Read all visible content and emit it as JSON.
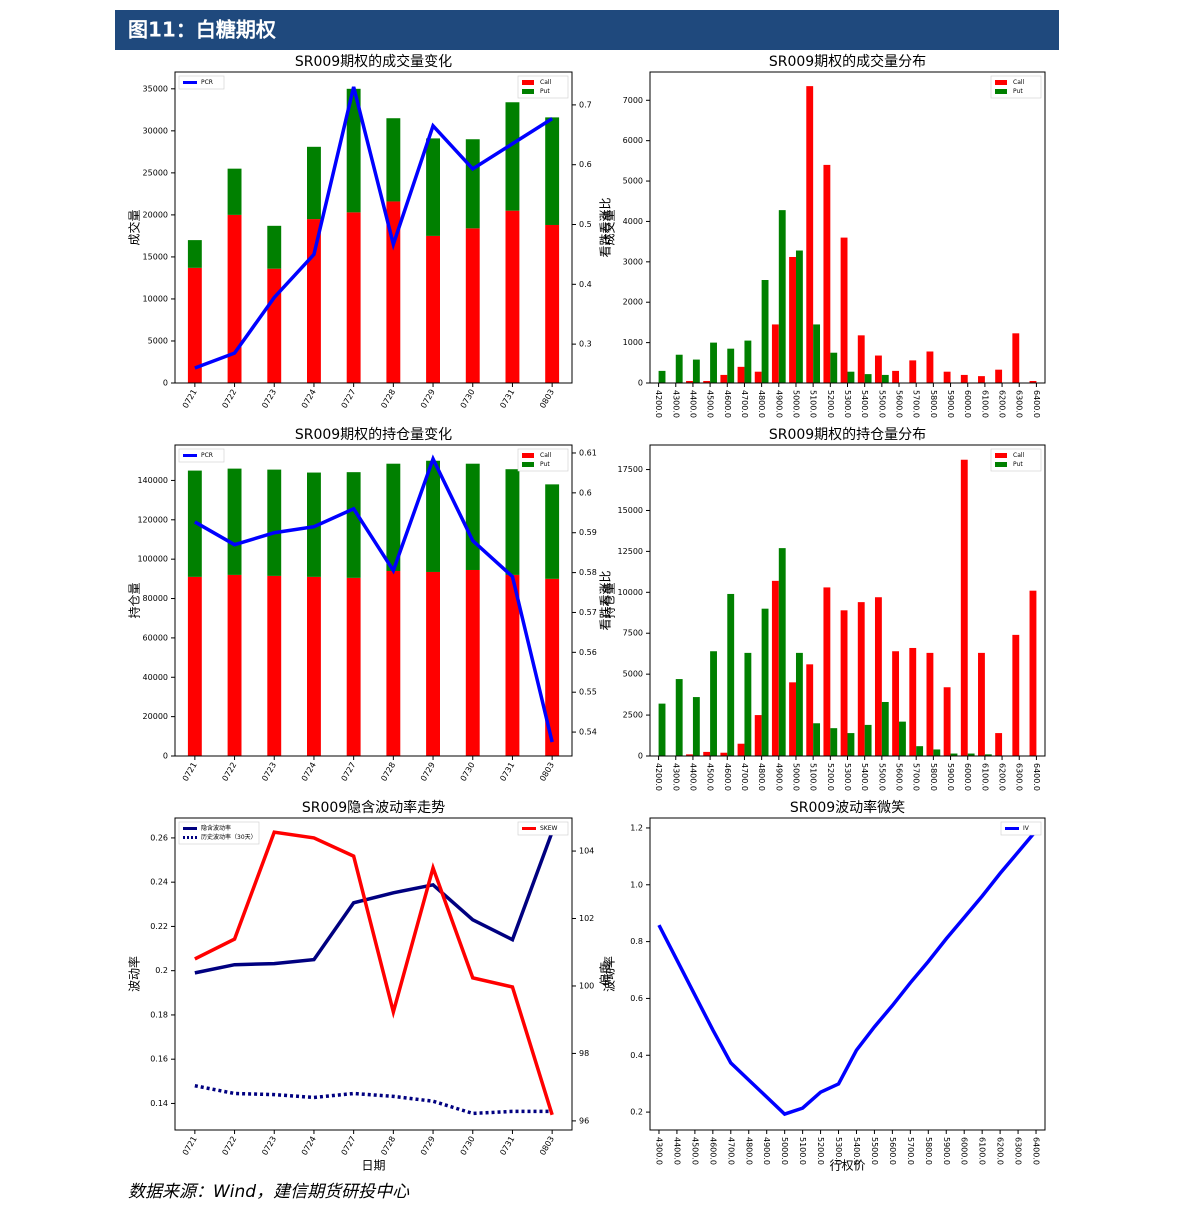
{
  "header": {
    "title": "图11：白糖期权"
  },
  "source": "数据来源：Wind，建信期货研投中心",
  "chart_data": [
    {
      "type": "bar",
      "stacked": true,
      "title": "SR009期权的成交量变化",
      "ylabel": "成交量",
      "y2label": "看跌看涨比",
      "categories": [
        "0721",
        "0722",
        "0723",
        "0724",
        "0727",
        "0728",
        "0729",
        "0730",
        "0731",
        "0803"
      ],
      "series": [
        {
          "name": "Call",
          "color": "#ff0000",
          "values": [
            13700,
            20000,
            13600,
            19500,
            20300,
            21600,
            17500,
            18400,
            20500,
            18800
          ]
        },
        {
          "name": "Put",
          "color": "#008000",
          "values": [
            3300,
            5500,
            5100,
            8600,
            14700,
            9900,
            11600,
            10600,
            12900,
            12800
          ]
        },
        {
          "name": "PCR",
          "type": "line",
          "axis": "y2",
          "color": "#0000ff",
          "values": [
            0.26,
            0.285,
            0.378,
            0.45,
            0.73,
            0.467,
            0.665,
            0.593,
            0.635,
            0.677
          ]
        }
      ],
      "ylim": [
        0,
        37000
      ],
      "yticks": [
        0,
        5000,
        10000,
        15000,
        20000,
        25000,
        30000,
        35000
      ],
      "y2lim": [
        0.235,
        0.755
      ],
      "y2ticks": [
        0.3,
        0.4,
        0.5,
        0.6,
        0.7
      ],
      "legend": "upper right",
      "y2_legend": "upper left",
      "grid": false
    },
    {
      "type": "bar",
      "stacked": false,
      "title": "SR009期权的成交量分布",
      "ylabel": "成交量",
      "categories": [
        "4200.0",
        "4300.0",
        "4400.0",
        "4500.0",
        "4600.0",
        "4700.0",
        "4800.0",
        "4900.0",
        "5000.0",
        "5100.0",
        "5200.0",
        "5300.0",
        "5400.0",
        "5500.0",
        "5600.0",
        "5700.0",
        "5800.0",
        "5900.0",
        "6000.0",
        "6100.0",
        "6200.0",
        "6300.0",
        "6400.0"
      ],
      "series": [
        {
          "name": "Call",
          "color": "#ff0000",
          "values": [
            0,
            0,
            50,
            50,
            200,
            400,
            280,
            1450,
            3120,
            7350,
            5400,
            3600,
            1180,
            680,
            300,
            560,
            780,
            280,
            200,
            170,
            330,
            1230,
            50
          ]
        },
        {
          "name": "Put",
          "color": "#008000",
          "values": [
            300,
            700,
            580,
            1000,
            850,
            1050,
            2550,
            4280,
            3280,
            1450,
            750,
            280,
            220,
            200,
            0,
            0,
            0,
            0,
            0,
            0,
            0,
            0,
            0
          ]
        }
      ],
      "ylim": [
        0,
        7700
      ],
      "yticks": [
        0,
        1000,
        2000,
        3000,
        4000,
        5000,
        6000,
        7000
      ],
      "legend": "upper right",
      "grid": false
    },
    {
      "type": "bar",
      "stacked": true,
      "title": "SR009期权的持仓量变化",
      "ylabel": "持仓量",
      "y2label": "看跌看涨比",
      "categories": [
        "0721",
        "0722",
        "0723",
        "0724",
        "0727",
        "0728",
        "0729",
        "0730",
        "0731",
        "0803"
      ],
      "series": [
        {
          "name": "Call",
          "color": "#ff0000",
          "values": [
            91000,
            92000,
            91500,
            91000,
            90500,
            94000,
            93500,
            94500,
            92000,
            90000
          ]
        },
        {
          "name": "Put",
          "color": "#008000",
          "values": [
            54000,
            54000,
            54000,
            53000,
            53700,
            54500,
            56500,
            54000,
            53700,
            48000
          ]
        },
        {
          "name": "PCR",
          "type": "line",
          "axis": "y2",
          "color": "#0000ff",
          "values": [
            0.5927,
            0.587,
            0.59,
            0.5915,
            0.596,
            0.5805,
            0.6085,
            0.588,
            0.579,
            0.5375
          ]
        }
      ],
      "ylim": [
        0,
        158000
      ],
      "yticks": [
        0,
        20000,
        40000,
        60000,
        80000,
        100000,
        120000,
        140000
      ],
      "y2lim": [
        0.534,
        0.612
      ],
      "y2ticks": [
        0.54,
        0.55,
        0.56,
        0.57,
        0.58,
        0.59,
        0.6,
        0.61
      ],
      "legend": "upper right",
      "y2_legend": "upper left",
      "grid": false
    },
    {
      "type": "bar",
      "stacked": false,
      "title": "SR009期权的持仓量分布",
      "ylabel": "持仓量",
      "categories": [
        "4200.0",
        "4300.0",
        "4400.0",
        "4500.0",
        "4600.0",
        "4700.0",
        "4800.0",
        "4900.0",
        "5000.0",
        "5100.0",
        "5200.0",
        "5300.0",
        "5400.0",
        "5500.0",
        "5600.0",
        "5700.0",
        "5800.0",
        "5900.0",
        "6000.0",
        "6100.0",
        "6200.0",
        "6300.0",
        "6400.0"
      ],
      "series": [
        {
          "name": "Call",
          "color": "#ff0000",
          "values": [
            0,
            0,
            100,
            250,
            200,
            750,
            2500,
            10700,
            4500,
            5600,
            10300,
            8900,
            9400,
            9700,
            6400,
            6600,
            6300,
            4200,
            18100,
            6300,
            1400,
            7400,
            10100
          ]
        },
        {
          "name": "Put",
          "color": "#008000",
          "values": [
            3200,
            4700,
            3600,
            6400,
            9900,
            6300,
            9000,
            12700,
            6300,
            2000,
            1700,
            1400,
            1900,
            3300,
            2100,
            600,
            400,
            150,
            150,
            100,
            0,
            0,
            0
          ]
        }
      ],
      "ylim": [
        0,
        19000
      ],
      "yticks": [
        0,
        2500,
        5000,
        7500,
        10000,
        12500,
        15000,
        17500
      ],
      "legend": "upper right",
      "grid": false
    },
    {
      "type": "line",
      "title": "SR009隐含波动率走势",
      "xlabel": "日期",
      "ylabel": "波动率",
      "y2label": "偏度",
      "categories": [
        "0721",
        "0722",
        "0723",
        "0724",
        "0727",
        "0728",
        "0729",
        "0730",
        "0731",
        "0803"
      ],
      "series": [
        {
          "name": "隐含波动率",
          "color": "#000080",
          "values": [
            0.199,
            0.2027,
            0.2032,
            0.205,
            0.2307,
            0.2352,
            0.2388,
            0.223,
            0.214,
            0.2627
          ]
        },
        {
          "name": "历史波动率（30天）",
          "color": "#000080",
          "linestyle": "dotted",
          "values": [
            0.148,
            0.1445,
            0.144,
            0.1427,
            0.1445,
            0.1432,
            0.141,
            0.1355,
            0.1364,
            0.1364
          ]
        },
        {
          "name": "SKEW",
          "axis": "y2",
          "color": "#ff0000",
          "values": [
            100.8,
            101.39,
            104.56,
            104.39,
            103.85,
            99.23,
            103.5,
            100.24,
            99.97,
            96.18
          ]
        }
      ],
      "ylim": [
        0.128,
        0.269
      ],
      "yticks": [
        0.14,
        0.16,
        0.18,
        0.2,
        0.22,
        0.24,
        0.26
      ],
      "y2lim": [
        95.73,
        104.98
      ],
      "y2ticks": [
        96,
        98,
        100,
        102,
        104
      ],
      "legend": "upper left",
      "y2_legend": "upper right",
      "grid": false
    },
    {
      "type": "line",
      "title": "SR009波动率微笑",
      "xlabel": "行权价",
      "ylabel": "波动率",
      "categories": [
        "4300.0",
        "4400.0",
        "4500.0",
        "4600.0",
        "4700.0",
        "4800.0",
        "4900.0",
        "5000.0",
        "5100.0",
        "5200.0",
        "5300.0",
        "5400.0",
        "5500.0",
        "5600.0",
        "5700.0",
        "5800.0",
        "5900.0",
        "6000.0",
        "6100.0",
        "6200.0",
        "6300.0",
        "6400.0"
      ],
      "series": [
        {
          "name": "IV",
          "color": "#0000ff",
          "values": [
            0.858,
            0.735,
            0.612,
            0.489,
            0.373,
            0.313,
            0.253,
            0.193,
            0.214,
            0.27,
            0.299,
            0.418,
            0.5,
            0.575,
            0.655,
            0.73,
            0.81,
            0.885,
            0.96,
            1.04,
            1.115,
            1.19
          ]
        }
      ],
      "ylim": [
        0.137,
        1.235
      ],
      "yticks": [
        0.2,
        0.4,
        0.6,
        0.8,
        {
          "value": 1,
          "label": "1.0"
        },
        1.2
      ],
      "legend": "upper right",
      "grid": false
    }
  ]
}
